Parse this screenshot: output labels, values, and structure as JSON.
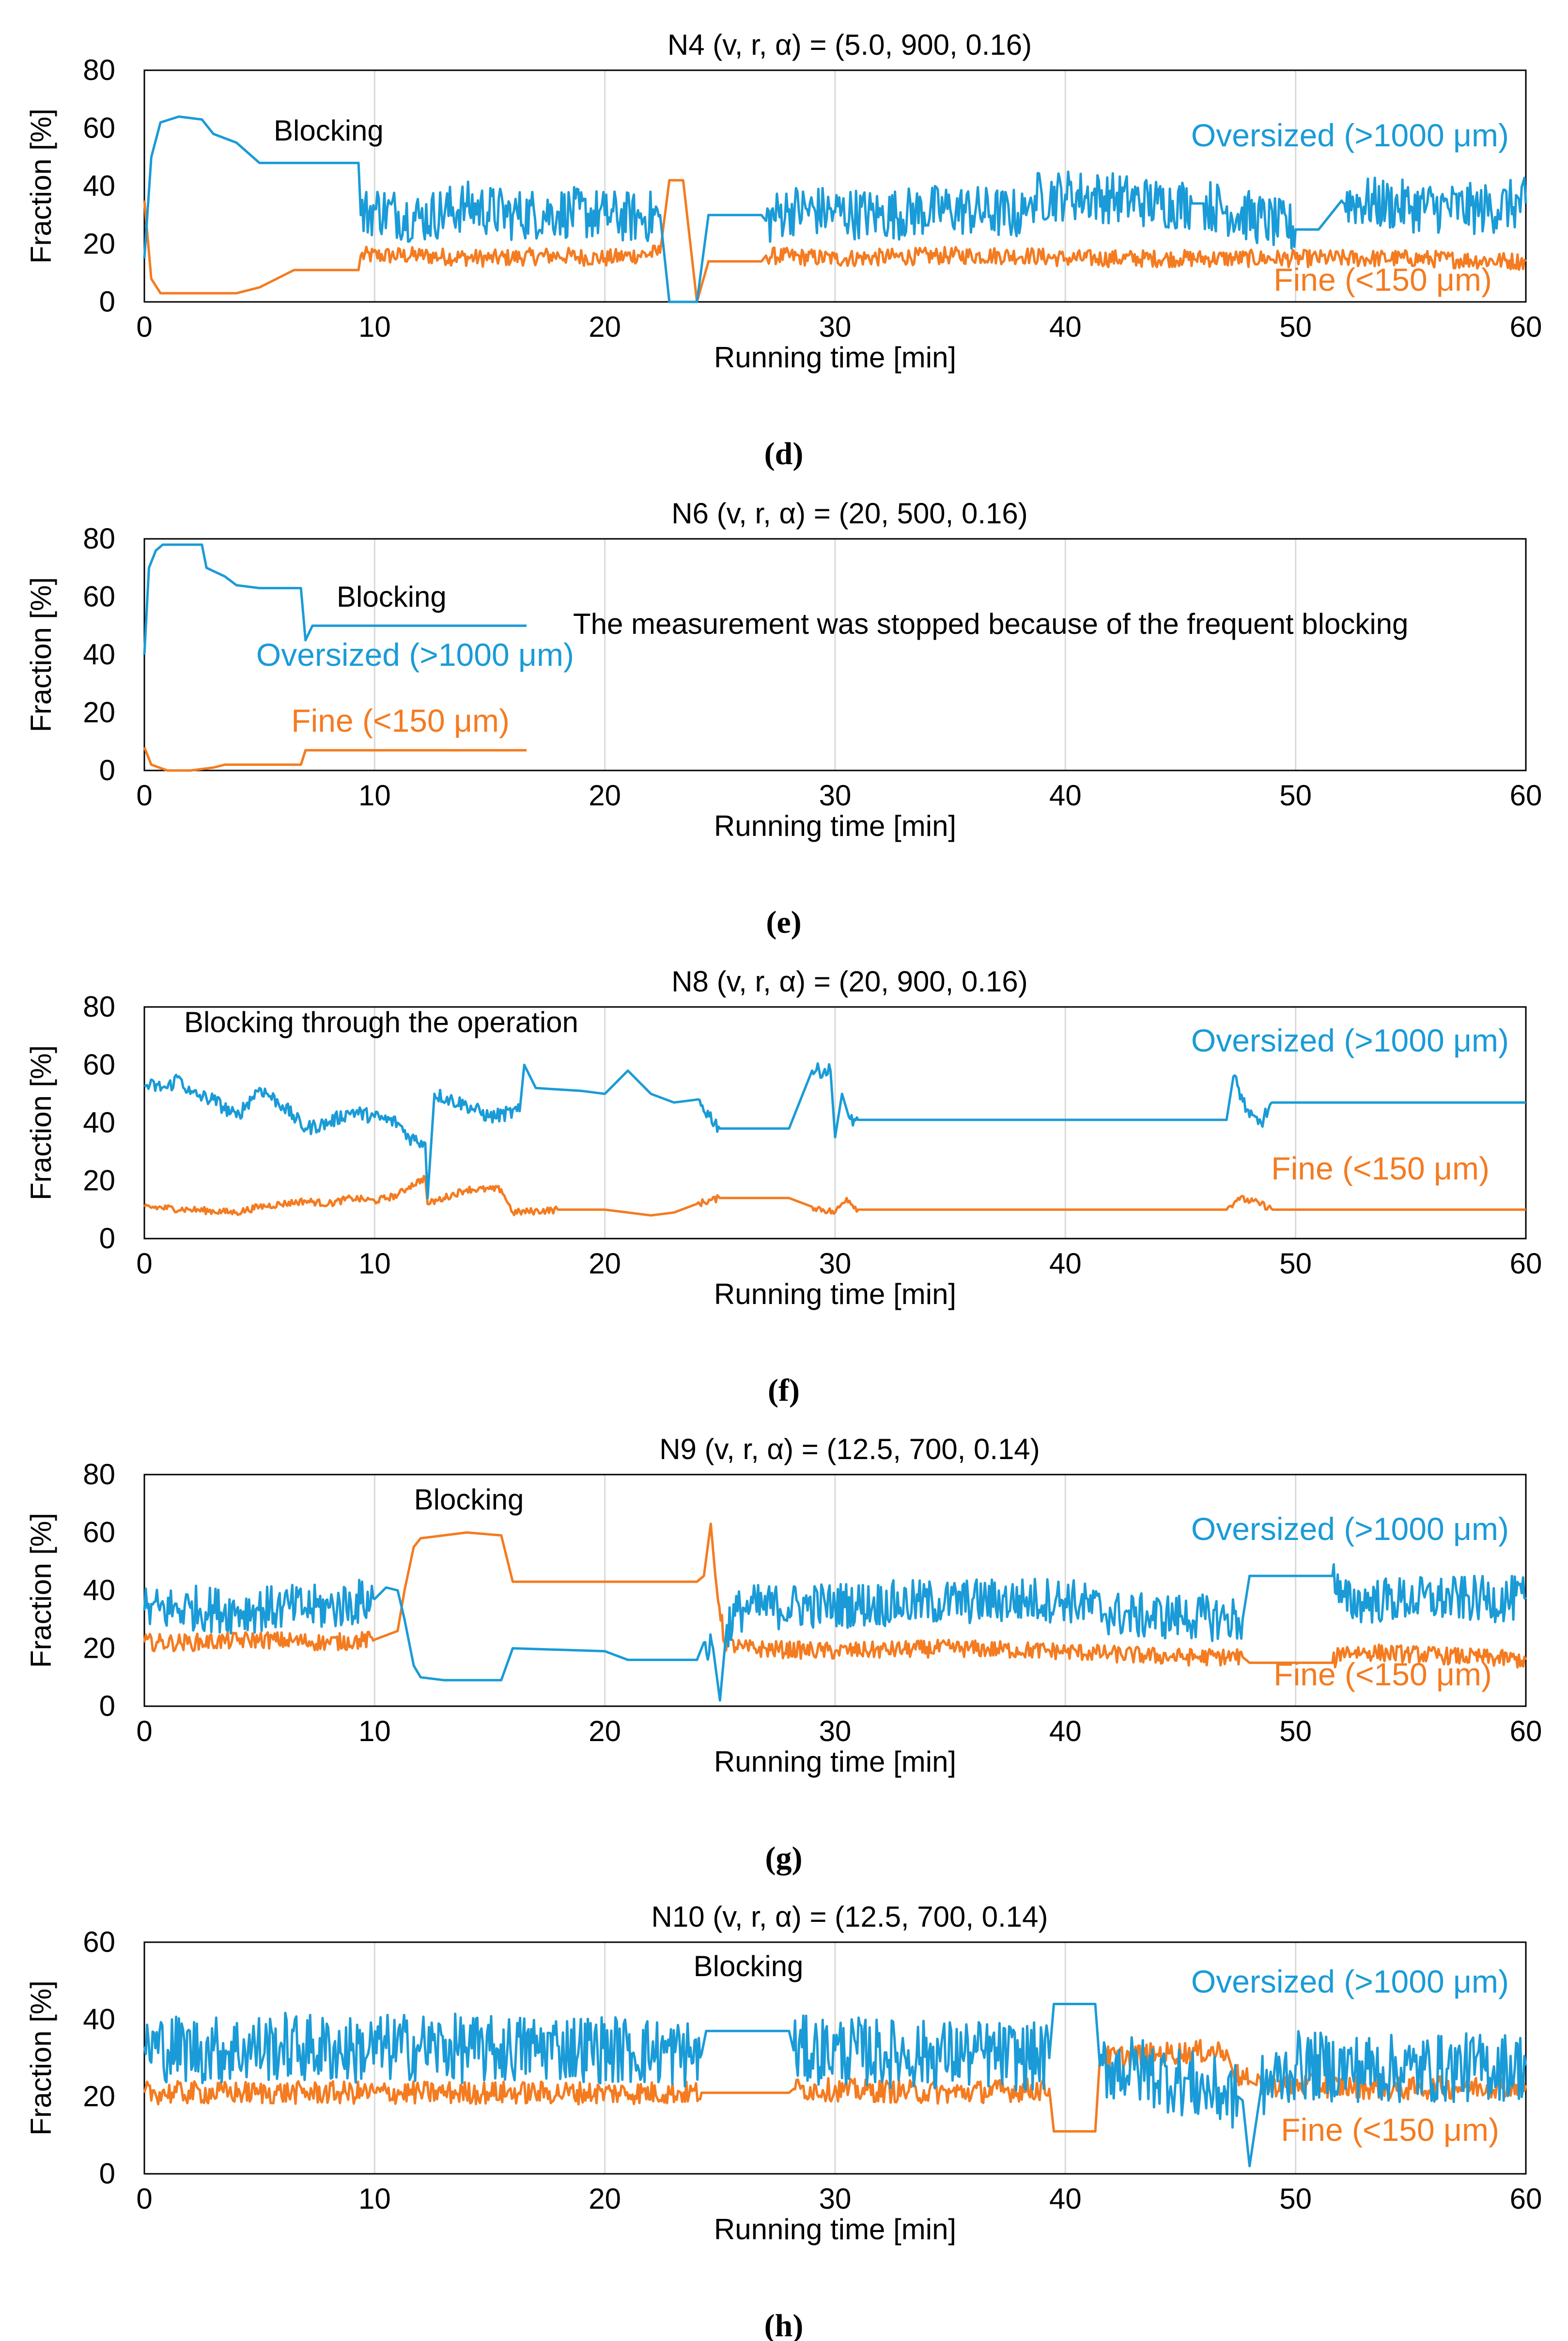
{
  "figure": {
    "panels": [
      {
        "caption": "(d)",
        "title": "N4 (v, r, α) = (5.0, 900, 0.16)",
        "xlabel": "Running time [min]",
        "ylabel": "Fraction [%]",
        "annotations": [
          "Blocking"
        ],
        "legend": {
          "oversized": "Oversized (>1000 μm)",
          "fine": "Fine (<150 μm)"
        }
      },
      {
        "caption": "(e)",
        "title": "N6 (v, r, α) = (20, 500, 0.16)",
        "xlabel": "Running time [min]",
        "ylabel": "Fraction [%]",
        "annotations": [
          "Blocking",
          "The measurement was stopped because of the frequent blocking"
        ],
        "legend": {
          "oversized": "Oversized (>1000 μm)",
          "fine": "Fine (<150 μm)"
        }
      },
      {
        "caption": "(f)",
        "title": "N8 (v, r, α) = (20, 900, 0.16)",
        "xlabel": "Running time [min]",
        "ylabel": "Fraction [%]",
        "annotations": [
          "Blocking through the operation"
        ],
        "legend": {
          "oversized": "Oversized (>1000 μm)",
          "fine": "Fine (<150 μm)"
        }
      },
      {
        "caption": "(g)",
        "title": "N9 (v, r, α) = (12.5, 700, 0.14)",
        "xlabel": "Running time [min]",
        "ylabel": "Fraction [%]",
        "annotations": [
          "Blocking"
        ],
        "legend": {
          "oversized": "Oversized (>1000 μm)",
          "fine": "Fine (<150 μm)"
        }
      },
      {
        "caption": "(h)",
        "title": "N10 (v, r, α) = (12.5, 700, 0.14)",
        "xlabel": "Running time [min]",
        "ylabel": "Fraction [%]",
        "annotations": [
          "Blocking"
        ],
        "legend": {
          "oversized": "Oversized (>1000 μm)",
          "fine": "Fine (<150 μm)"
        }
      }
    ]
  },
  "colors": {
    "oversized": "#1a9bd7",
    "fine": "#f47b20",
    "axis": "#000000",
    "grid": "#d9d9d9"
  },
  "chart_data": [
    {
      "type": "line",
      "title": "N4 (v, r, α) = (5.0, 900, 0.16)",
      "xlabel": "Running time [min]",
      "ylabel": "Fraction [%]",
      "xlim": [
        0,
        60
      ],
      "ylim": [
        0,
        80
      ],
      "xticks": [
        0,
        10,
        20,
        30,
        40,
        50,
        60
      ],
      "yticks": [
        0,
        20,
        40,
        60,
        80
      ],
      "grid": "vertical",
      "series": [
        {
          "name": "Oversized (>1000 μm)",
          "x": [
            0,
            0.3,
            0.7,
            1.5,
            2.5,
            3.0,
            4.0,
            5.0,
            5.5,
            9.3,
            9.4,
            10,
            12,
            14,
            16,
            18,
            20,
            21.5,
            22.4,
            22.8,
            23.0,
            24.0,
            24.5,
            26.8,
            27.0,
            28,
            30,
            32,
            35,
            38.3,
            38.5,
            40,
            42,
            44,
            45.5,
            46,
            50,
            51,
            52,
            55,
            58,
            60
          ],
          "y": [
            15,
            50,
            62,
            64,
            63,
            58,
            55,
            48,
            48,
            48,
            30,
            32,
            29,
            33,
            30,
            31,
            30,
            29,
            30,
            0,
            0,
            0,
            30,
            30,
            28,
            32,
            31,
            30,
            32,
            30,
            36,
            37,
            36,
            34,
            34,
            34,
            25,
            25,
            35,
            33,
            32,
            34
          ]
        },
        {
          "name": "Fine (<150 μm)",
          "x": [
            0,
            0.3,
            0.7,
            2,
            4,
            5,
            5.5,
            6.5,
            9.3,
            9.4,
            12,
            15,
            18,
            20,
            22.4,
            22.8,
            23.4,
            24.0,
            24.5,
            26.8,
            27.0,
            30,
            35,
            38.3,
            40,
            45,
            50,
            55,
            60
          ],
          "y": [
            35,
            8,
            3,
            3,
            3,
            5,
            7,
            11,
            11,
            16,
            16,
            15,
            16,
            15,
            17,
            42,
            42,
            0,
            14,
            14,
            16,
            15,
            16,
            16,
            15,
            15,
            15,
            15,
            14
          ]
        }
      ]
    },
    {
      "type": "line",
      "title": "N6 (v, r, α) = (20, 500, 0.16)",
      "xlabel": "Running time [min]",
      "ylabel": "Fraction [%]",
      "xlim": [
        0,
        60
      ],
      "ylim": [
        0,
        80
      ],
      "xticks": [
        0,
        10,
        20,
        30,
        40,
        50,
        60
      ],
      "yticks": [
        0,
        20,
        40,
        60,
        80
      ],
      "grid": "vertical",
      "series": [
        {
          "name": "Oversized (>1000 μm)",
          "x": [
            0,
            0.2,
            0.5,
            0.8,
            1.5,
            2.5,
            2.7,
            3.5,
            4,
            5,
            6.8,
            7.0,
            7.3,
            8,
            9,
            10,
            16.6
          ],
          "y": [
            40,
            70,
            76,
            78,
            78,
            78,
            70,
            67,
            64,
            63,
            63,
            45,
            50,
            50,
            50,
            50,
            50
          ]
        },
        {
          "name": "Fine (<150 μm)",
          "x": [
            0,
            0.3,
            1,
            2,
            3,
            3.5,
            6.8,
            7.0,
            16.6
          ],
          "y": [
            8,
            2,
            0,
            0,
            1,
            2,
            2,
            7,
            7
          ]
        }
      ]
    },
    {
      "type": "line",
      "title": "N8 (v, r, α) = (20, 900, 0.16)",
      "xlabel": "Running time [min]",
      "ylabel": "Fraction [%]",
      "xlim": [
        0,
        60
      ],
      "ylim": [
        0,
        80
      ],
      "xticks": [
        0,
        10,
        20,
        30,
        40,
        50,
        60
      ],
      "yticks": [
        0,
        20,
        40,
        60,
        80
      ],
      "grid": "vertical",
      "series": [
        {
          "name": "Oversized (>1000 μm)",
          "x": [
            0,
            1,
            1.5,
            2,
            3,
            4,
            5,
            6,
            7,
            8,
            9,
            10,
            11,
            11.5,
            12.2,
            12.3,
            12.6,
            14,
            15,
            16.3,
            16.5,
            17,
            19,
            20,
            21,
            22,
            23,
            24,
            25,
            27,
            28,
            29,
            29.8,
            30.0,
            30.3,
            30.6,
            31,
            40,
            47.0,
            47.3,
            48,
            48.5,
            49,
            50,
            60
          ],
          "y": [
            53,
            52,
            56,
            50,
            48,
            42,
            52,
            46,
            38,
            40,
            44,
            42,
            40,
            35,
            33,
            14,
            50,
            46,
            42,
            44,
            60,
            52,
            51,
            50,
            58,
            50,
            47,
            48,
            38,
            38,
            38,
            58,
            58,
            35,
            50,
            42,
            41,
            41,
            41,
            56,
            42,
            40,
            47,
            47,
            47
          ]
        },
        {
          "name": "Fine (<150 μm)",
          "x": [
            0,
            2,
            4,
            5,
            7,
            8,
            9,
            10,
            11,
            11.5,
            12.2,
            12.3,
            13,
            14,
            15.5,
            16,
            18,
            20,
            21,
            22,
            23,
            24,
            25,
            28,
            29,
            30,
            30.5,
            31,
            40,
            47.0,
            47.5,
            48.5,
            49,
            60
          ],
          "y": [
            11,
            10,
            9,
            11,
            13,
            12,
            14,
            13,
            15,
            18,
            21,
            12,
            14,
            17,
            17,
            9,
            10,
            10,
            9,
            8,
            9,
            12,
            14,
            14,
            11,
            9,
            14,
            10,
            10,
            10,
            14,
            12,
            10,
            10
          ]
        }
      ]
    },
    {
      "type": "line",
      "title": "N9 (v, r, α) = (12.5, 700, 0.14)",
      "xlabel": "Running time [min]",
      "ylabel": "Fraction [%]",
      "xlim": [
        0,
        60
      ],
      "ylim": [
        0,
        80
      ],
      "xticks": [
        0,
        10,
        20,
        30,
        40,
        50,
        60
      ],
      "yticks": [
        0,
        20,
        40,
        60,
        80
      ],
      "grid": "vertical",
      "series": [
        {
          "name": "Oversized (>1000 μm)",
          "x": [
            0,
            2,
            4,
            6,
            8,
            10,
            10.5,
            11,
            11.3,
            11.7,
            12,
            13,
            15.5,
            16,
            20,
            21,
            24.0,
            24.3,
            24.7,
            25.0,
            25.3,
            26,
            30,
            35,
            40,
            42,
            43,
            45,
            47.7,
            48,
            51.6,
            52,
            55,
            58,
            60
          ],
          "y": [
            33,
            34,
            33,
            34,
            34,
            37,
            41,
            40,
            30,
            14,
            10,
            9,
            9,
            20,
            19,
            16,
            16,
            22,
            20,
            2,
            28,
            34,
            35,
            36,
            37,
            32,
            31,
            31,
            30,
            45,
            45,
            36,
            37,
            37,
            37
          ]
        },
        {
          "name": "Fine (<150 μm)",
          "x": [
            0,
            2,
            5,
            8,
            10,
            11,
            11.3,
            11.7,
            12,
            13,
            14,
            15.5,
            16,
            20,
            24.0,
            24.3,
            24.6,
            24.8,
            25.2,
            26,
            30,
            35,
            40,
            42,
            45,
            47.7,
            48,
            51.6,
            52,
            55,
            60
          ],
          "y": [
            22,
            22,
            23,
            22,
            23,
            26,
            40,
            55,
            58,
            59,
            60,
            59,
            43,
            43,
            43,
            45,
            63,
            45,
            22,
            20,
            19,
            20,
            19,
            18,
            17,
            17,
            15,
            15,
            19,
            18,
            16
          ]
        }
      ]
    },
    {
      "type": "line",
      "title": "N10 (v, r, α) = (12.5, 700, 0.14)",
      "xlabel": "Running time [min]",
      "ylabel": "Fraction [%]",
      "xlim": [
        0,
        60
      ],
      "ylim": [
        0,
        60
      ],
      "xticks": [
        0,
        10,
        20,
        30,
        40,
        50,
        60
      ],
      "yticks": [
        0,
        20,
        40,
        60
      ],
      "grid": "vertical",
      "series": [
        {
          "name": "Oversized (>1000 μm)",
          "x": [
            0,
            3,
            6,
            9,
            12,
            15,
            18,
            21,
            24.2,
            24.4,
            28.0,
            28.2,
            30,
            33,
            36,
            39.3,
            39.5,
            41.3,
            41.5,
            43,
            45,
            46,
            47.5,
            47.7,
            48.0,
            48.5,
            50,
            55,
            60
          ],
          "y": [
            33,
            32,
            33,
            32,
            33,
            32,
            33,
            32,
            31,
            37,
            37,
            32,
            32,
            31,
            31,
            30,
            44,
            44,
            28,
            27,
            24,
            22,
            20,
            19,
            2,
            22,
            28,
            27,
            28
          ]
        },
        {
          "name": "Fine (<150 μm)",
          "x": [
            0,
            5,
            10,
            15,
            20,
            24.2,
            24.4,
            28.0,
            28.2,
            35,
            39.3,
            39.5,
            41.3,
            41.5,
            44,
            47,
            47.3,
            48.0,
            48.3,
            50,
            55,
            60
          ],
          "y": [
            21,
            21,
            21,
            21,
            21,
            21,
            21,
            21,
            22,
            21,
            22,
            11,
            11,
            30,
            31,
            32,
            26,
            24,
            23,
            23,
            22,
            23
          ]
        }
      ]
    }
  ]
}
